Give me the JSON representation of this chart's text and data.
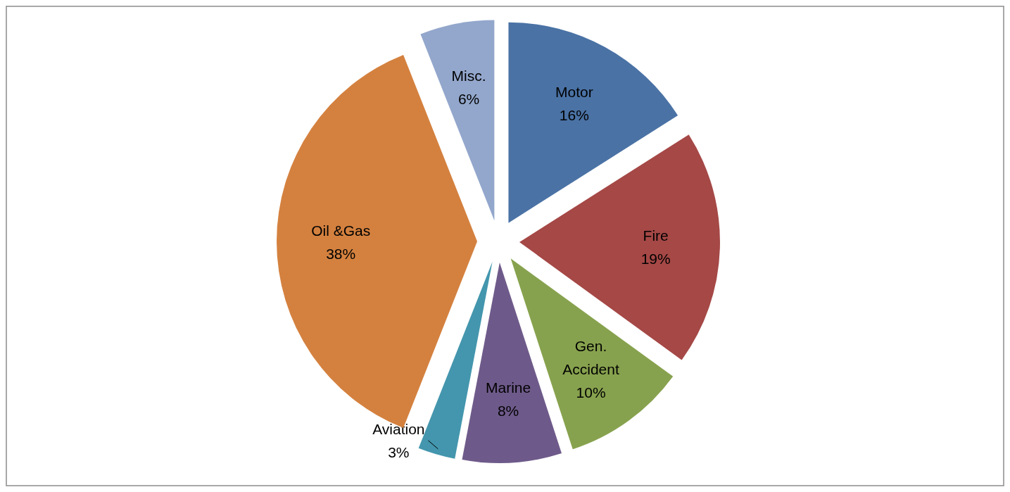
{
  "chart_data": {
    "type": "pie",
    "categories": [
      "Motor",
      "Fire",
      "Gen. Accident",
      "Marine",
      "Aviation",
      "Oil &Gas",
      "Misc."
    ],
    "values": [
      16,
      19,
      10,
      8,
      3,
      38,
      6
    ],
    "value_labels": [
      "16%",
      "19%",
      "10%",
      "8%",
      "3%",
      "38%",
      "6%"
    ],
    "colors": [
      "#4a72a5",
      "#a54846",
      "#87a24e",
      "#6e5a8a",
      "#4396ad",
      "#d4813f",
      "#93a7cc"
    ]
  }
}
